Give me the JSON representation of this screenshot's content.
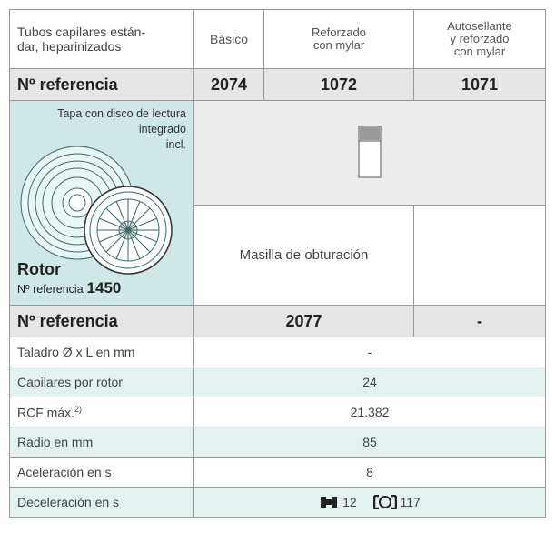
{
  "table": {
    "header": [
      [
        "Tubos capilares están-",
        "dar, heparinizados"
      ],
      [
        "Básico"
      ],
      [
        "Reforzado",
        "con mylar"
      ],
      [
        "Autosellante",
        "y reforzado",
        "con mylar"
      ]
    ],
    "ref_label": "Nº referencia",
    "refs": [
      "2074",
      "1072",
      "1071"
    ],
    "rotor": {
      "note": [
        "Tapa con disco de lectura",
        "integrado",
        "incl."
      ],
      "title": "Rotor",
      "ref_label": "Nº referencia",
      "ref": "1450"
    },
    "sealant": "Masilla de obturación",
    "ref2_label": "Nº referencia",
    "refs2": [
      "2077",
      "-"
    ],
    "rows": [
      {
        "label": "Taladro Ø x L en mm",
        "value": "-"
      },
      {
        "label": "Capilares por rotor",
        "value": "24"
      },
      {
        "label": "RCF máx.",
        "sup": "2)",
        "value": "21.382"
      },
      {
        "label": "Radio en mm",
        "value": "85"
      },
      {
        "label": "Aceleración en s",
        "value": "8"
      },
      {
        "label": "Deceleración en s",
        "values": [
          "12",
          "117"
        ]
      }
    ]
  }
}
